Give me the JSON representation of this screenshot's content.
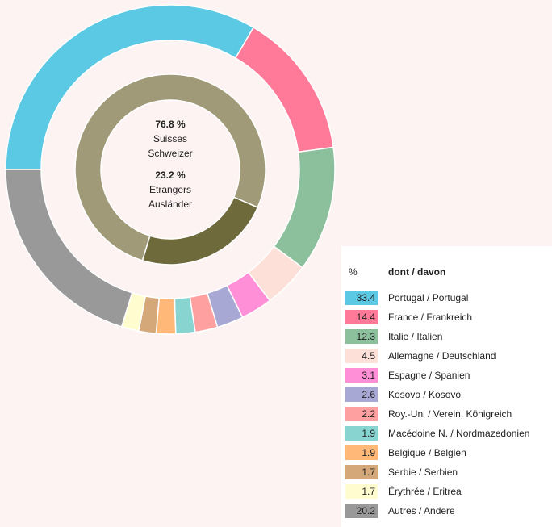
{
  "chart_data": {
    "type": "donut",
    "inner": {
      "values": [
        76.8,
        23.2
      ],
      "value_labels": [
        "76.8 %",
        "23.2 %"
      ],
      "labels_fr": [
        "Suisses",
        "Etrangers"
      ],
      "labels_de": [
        "Schweizer",
        "Ausländer"
      ],
      "colors": [
        "#a09a78",
        "#6e6a3c"
      ]
    },
    "legend_header": {
      "unit": "%",
      "title": "dont / davon"
    },
    "categories": [
      "Portugal / Portugal",
      "France / Frankreich",
      "Italie / Italien",
      "Allemagne / Deutschland",
      "Espagne / Spanien",
      "Kosovo / Kosovo",
      "Roy.-Uni / Verein. Königreich",
      "Macédoine N. / Nordmazedonien",
      "Belgique / Belgien",
      "Serbie / Serbien",
      "Érythrée / Eritrea",
      "Autres / Andere"
    ],
    "values": [
      33.4,
      14.4,
      12.3,
      4.5,
      3.1,
      2.6,
      2.2,
      1.9,
      1.9,
      1.7,
      1.7,
      20.2
    ],
    "colors": [
      "#5bc8e4",
      "#ff7a98",
      "#8cbf9c",
      "#fde0d8",
      "#ff8fd6",
      "#a8a8d4",
      "#ffa0a0",
      "#88d4d0",
      "#ffb878",
      "#d4a878",
      "#fffcd0",
      "#999999"
    ]
  }
}
